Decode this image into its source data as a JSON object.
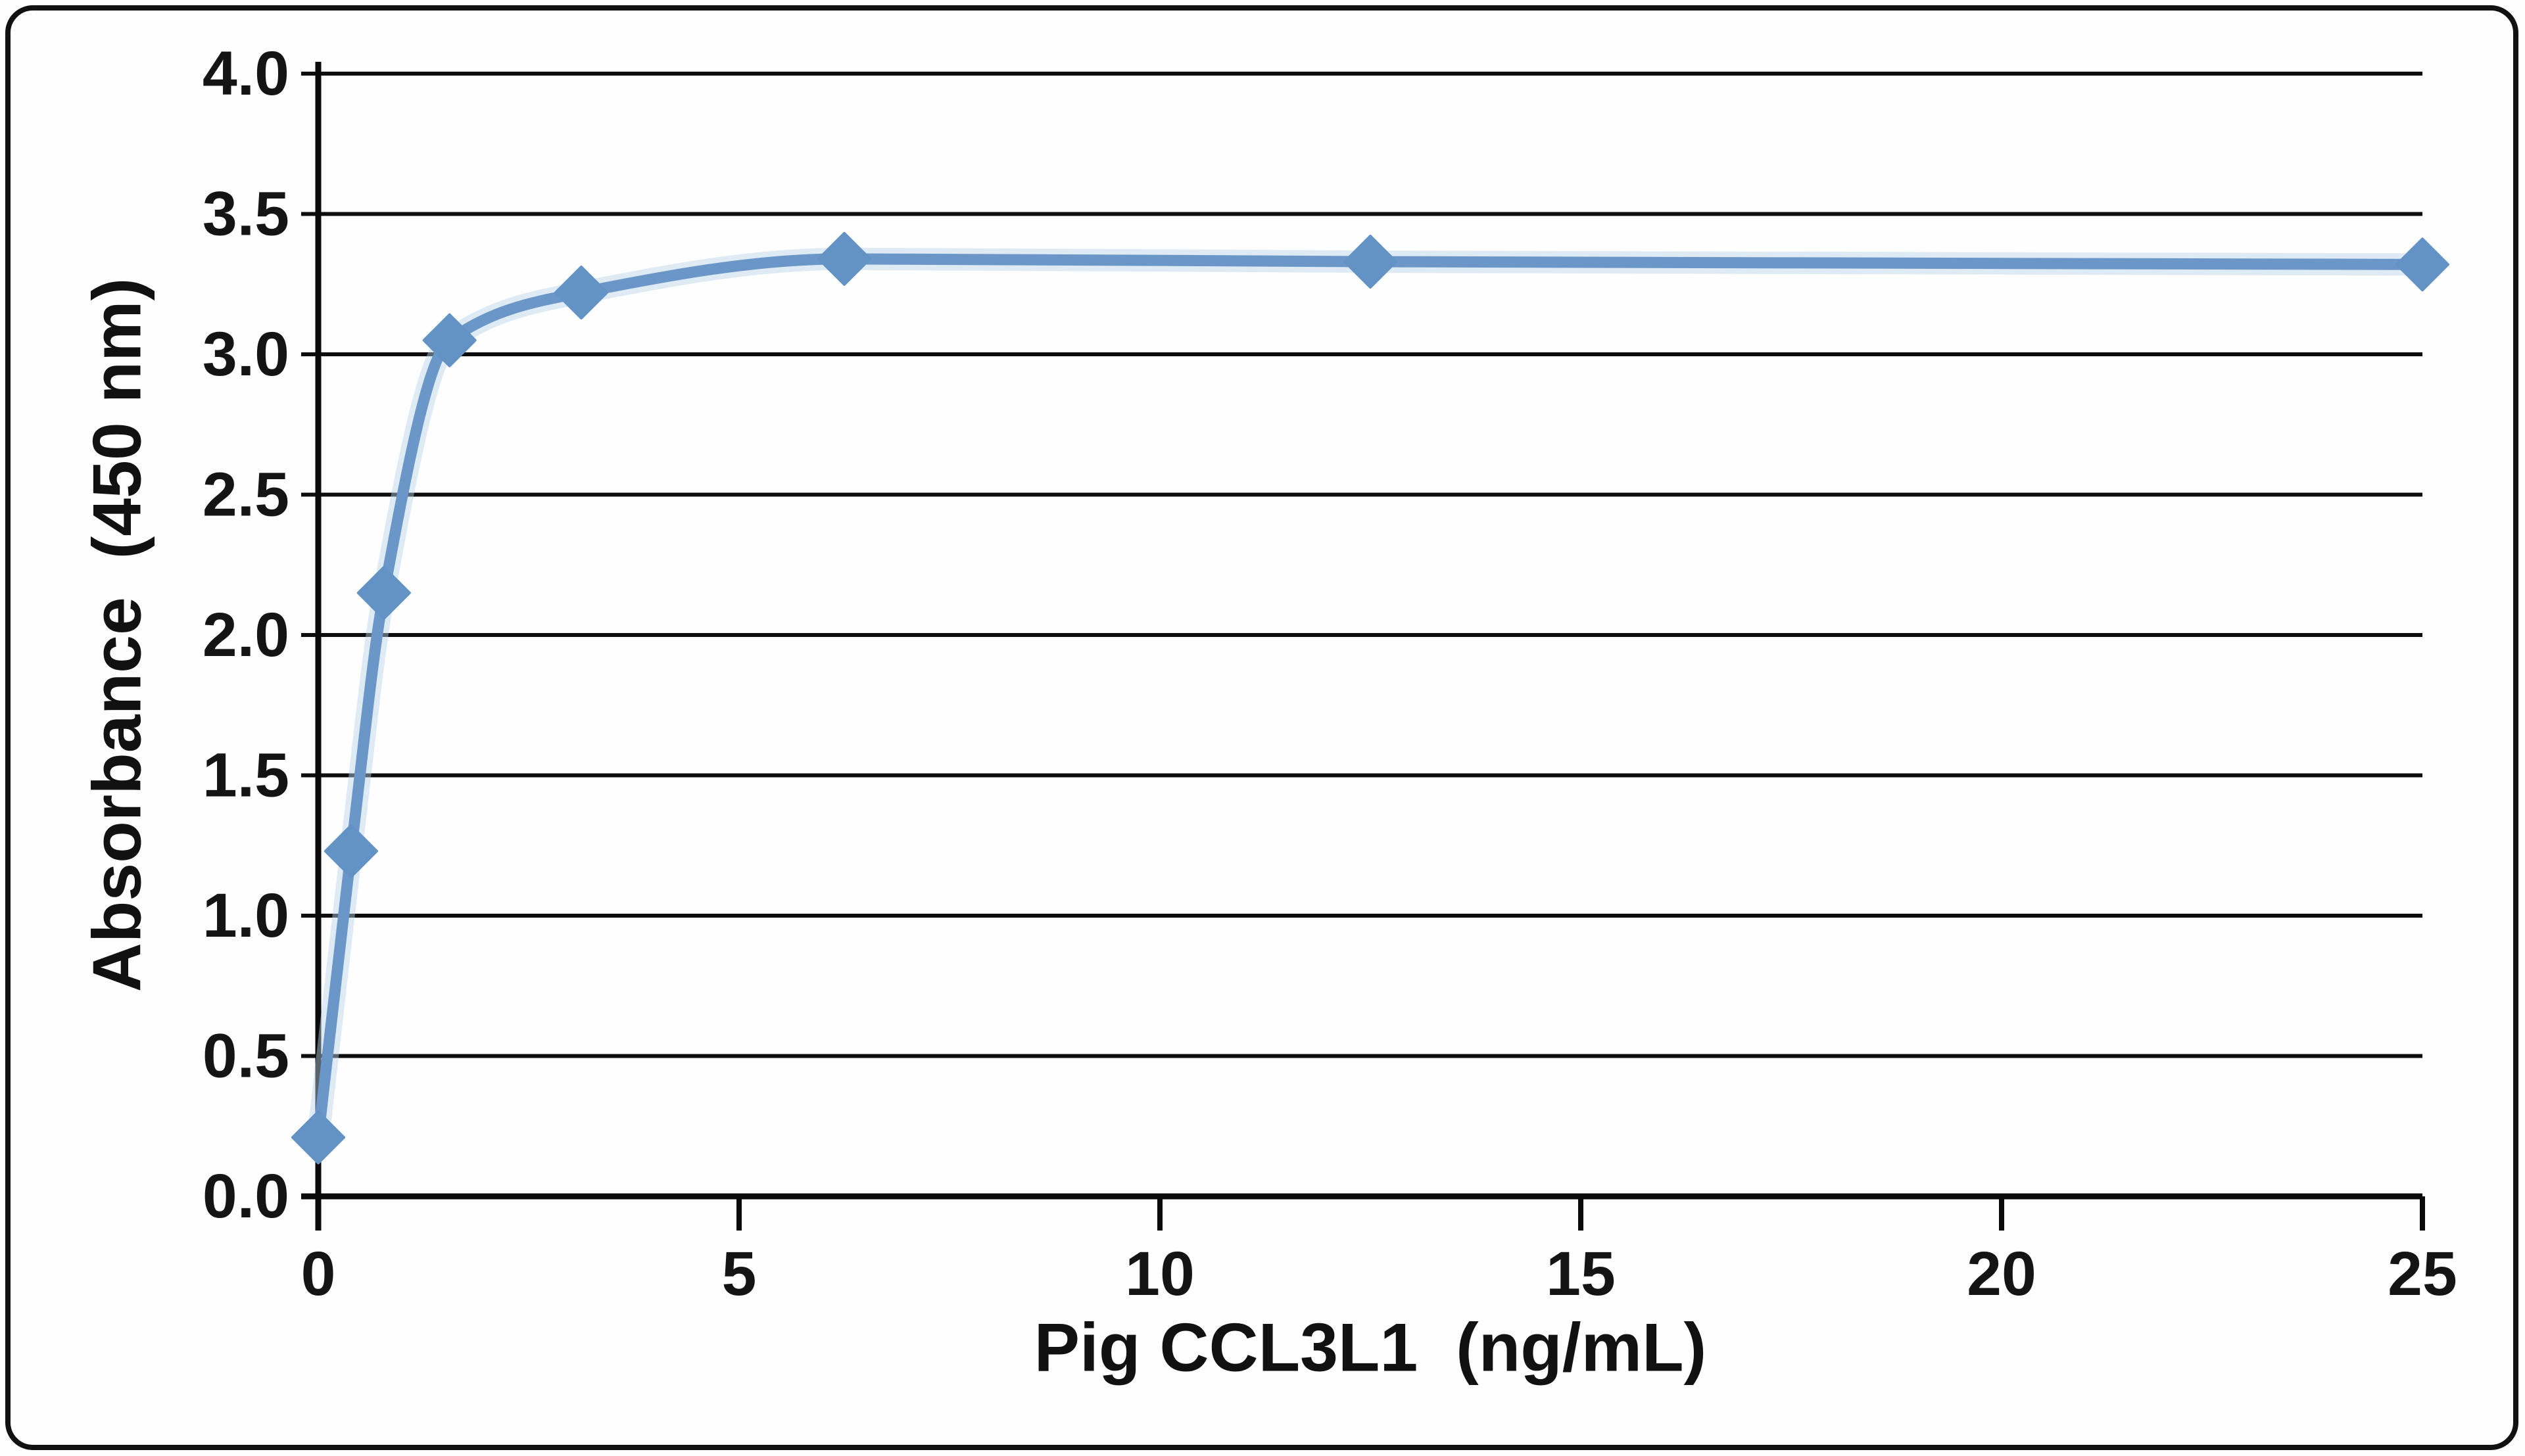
{
  "chart_data": {
    "type": "line",
    "title": "",
    "xlabel": "Pig CCL3L1  (ng/mL)",
    "ylabel": "Absorbance  (450 nm)",
    "x": [
      0,
      0.39,
      0.78,
      1.56,
      3.125,
      6.25,
      12.5,
      25
    ],
    "y": [
      0.21,
      1.23,
      2.15,
      3.05,
      3.22,
      3.34,
      3.33,
      3.32
    ],
    "xlim": [
      0,
      25
    ],
    "ylim": [
      0,
      4
    ],
    "xticks": {
      "values": [
        0,
        5,
        10,
        15,
        20,
        25
      ],
      "labels": [
        "0",
        "5",
        "10",
        "15",
        "20",
        "25"
      ]
    },
    "yticks": {
      "values": [
        0,
        0.5,
        1,
        1.5,
        2,
        2.5,
        3,
        3.5,
        4
      ],
      "labels": [
        "0.0",
        "0.5",
        "1.0",
        "1.5",
        "2.0",
        "2.5",
        "3.0",
        "3.5",
        "4.0"
      ]
    },
    "grid": "horizontal",
    "legend_position": "none",
    "marker": "diamond",
    "smooth": true,
    "colors": {
      "line": "#6b97c8",
      "line_halo": "#b9d2e8",
      "marker": "#6392c5",
      "axis": "#0a0a0a",
      "grid": "#0d0d0d",
      "text": "#141414",
      "frame": "#111111",
      "background": "#fefefe"
    }
  }
}
